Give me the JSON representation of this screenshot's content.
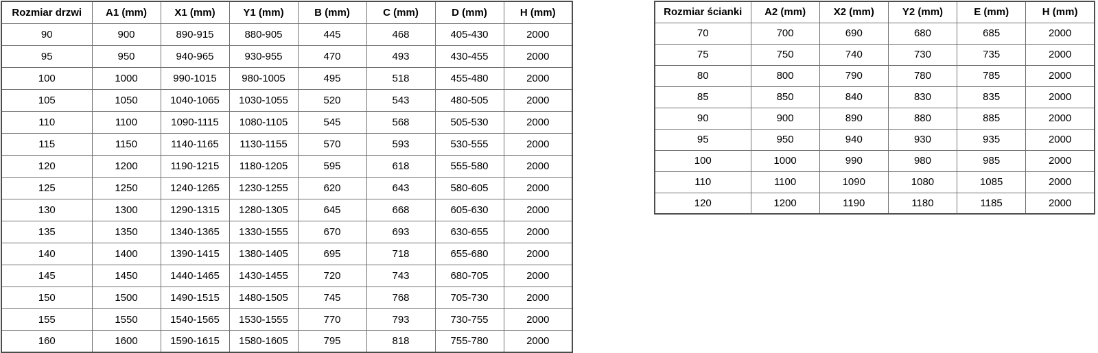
{
  "colors": {
    "background": "#ffffff",
    "border_outer": "#4d4d4d",
    "border_inner": "#6f6f6f",
    "text": "#000000"
  },
  "door_table": {
    "headers": [
      "Rozmiar drzwi",
      "A1 (mm)",
      "X1 (mm)",
      "Y1 (mm)",
      "B (mm)",
      "C (mm)",
      "D (mm)",
      "H (mm)"
    ],
    "rows": [
      [
        "90",
        "900",
        "890-915",
        "880-905",
        "445",
        "468",
        "405-430",
        "2000"
      ],
      [
        "95",
        "950",
        "940-965",
        "930-955",
        "470",
        "493",
        "430-455",
        "2000"
      ],
      [
        "100",
        "1000",
        "990-1015",
        "980-1005",
        "495",
        "518",
        "455-480",
        "2000"
      ],
      [
        "105",
        "1050",
        "1040-1065",
        "1030-1055",
        "520",
        "543",
        "480-505",
        "2000"
      ],
      [
        "110",
        "1100",
        "1090-1115",
        "1080-1105",
        "545",
        "568",
        "505-530",
        "2000"
      ],
      [
        "115",
        "1150",
        "1140-1165",
        "1130-1155",
        "570",
        "593",
        "530-555",
        "2000"
      ],
      [
        "120",
        "1200",
        "1190-1215",
        "1180-1205",
        "595",
        "618",
        "555-580",
        "2000"
      ],
      [
        "125",
        "1250",
        "1240-1265",
        "1230-1255",
        "620",
        "643",
        "580-605",
        "2000"
      ],
      [
        "130",
        "1300",
        "1290-1315",
        "1280-1305",
        "645",
        "668",
        "605-630",
        "2000"
      ],
      [
        "135",
        "1350",
        "1340-1365",
        "1330-1555",
        "670",
        "693",
        "630-655",
        "2000"
      ],
      [
        "140",
        "1400",
        "1390-1415",
        "1380-1405",
        "695",
        "718",
        "655-680",
        "2000"
      ],
      [
        "145",
        "1450",
        "1440-1465",
        "1430-1455",
        "720",
        "743",
        "680-705",
        "2000"
      ],
      [
        "150",
        "1500",
        "1490-1515",
        "1480-1505",
        "745",
        "768",
        "705-730",
        "2000"
      ],
      [
        "155",
        "1550",
        "1540-1565",
        "1530-1555",
        "770",
        "793",
        "730-755",
        "2000"
      ],
      [
        "160",
        "1600",
        "1590-1615",
        "1580-1605",
        "795",
        "818",
        "755-780",
        "2000"
      ]
    ]
  },
  "panel_table": {
    "headers": [
      "Rozmiar ścianki",
      "A2 (mm)",
      "X2 (mm)",
      "Y2 (mm)",
      "E (mm)",
      "H (mm)"
    ],
    "rows": [
      [
        "70",
        "700",
        "690",
        "680",
        "685",
        "2000"
      ],
      [
        "75",
        "750",
        "740",
        "730",
        "735",
        "2000"
      ],
      [
        "80",
        "800",
        "790",
        "780",
        "785",
        "2000"
      ],
      [
        "85",
        "850",
        "840",
        "830",
        "835",
        "2000"
      ],
      [
        "90",
        "900",
        "890",
        "880",
        "885",
        "2000"
      ],
      [
        "95",
        "950",
        "940",
        "930",
        "935",
        "2000"
      ],
      [
        "100",
        "1000",
        "990",
        "980",
        "985",
        "2000"
      ],
      [
        "110",
        "1100",
        "1090",
        "1080",
        "1085",
        "2000"
      ],
      [
        "120",
        "1200",
        "1190",
        "1180",
        "1185",
        "2000"
      ]
    ]
  }
}
